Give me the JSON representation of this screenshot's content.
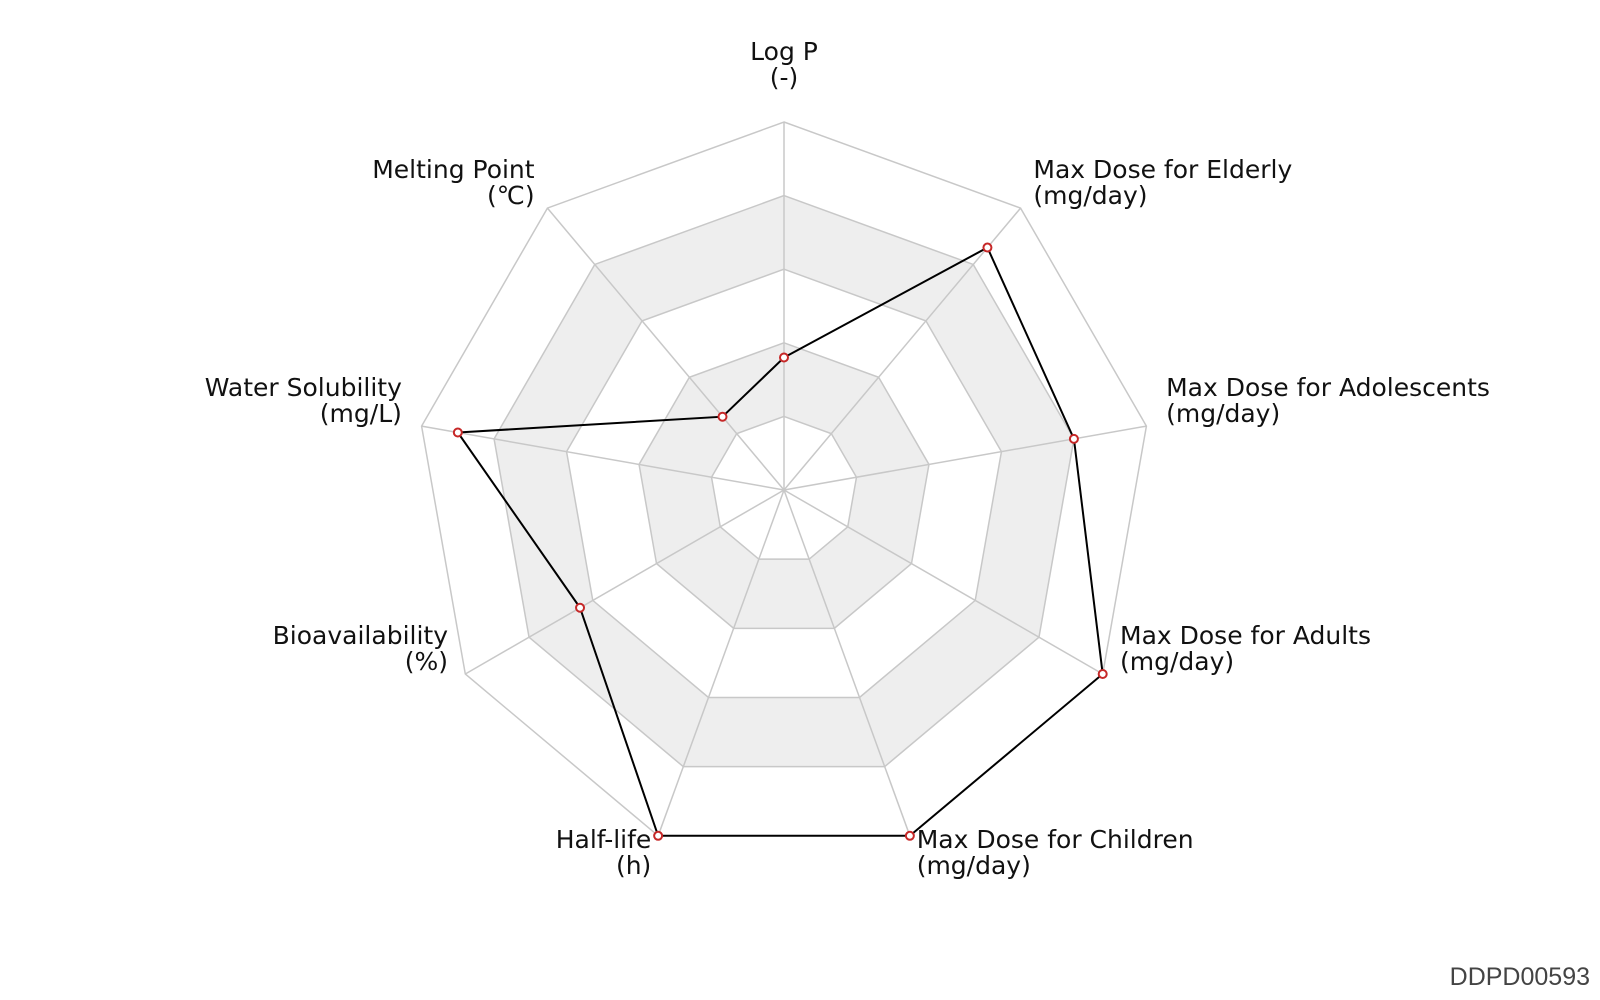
{
  "chart_data": {
    "type": "radar",
    "axes": [
      {
        "name": "Log P",
        "unit": "(-)"
      },
      {
        "name": "Max Dose for Elderly",
        "unit": "(mg/day)"
      },
      {
        "name": "Max Dose for Adolescents",
        "unit": "(mg/day)"
      },
      {
        "name": "Max Dose for Adults",
        "unit": "(mg/day)"
      },
      {
        "name": "Max Dose for Children",
        "unit": "(mg/day)"
      },
      {
        "name": "Half-life",
        "unit": "(h)"
      },
      {
        "name": "Bioavailability",
        "unit": "(%)"
      },
      {
        "name": "Water Solubility",
        "unit": "(mg/L)"
      },
      {
        "name": "Melting Point",
        "unit": "(℃)"
      }
    ],
    "range": [
      0,
      1
    ],
    "rings": 5,
    "alternating_bands": true,
    "values": [
      0.36,
      0.86,
      0.8,
      1.0,
      1.0,
      1.0,
      0.64,
      0.9,
      0.26
    ],
    "line_color": "#000000",
    "marker_color": "#c62828",
    "grid_color": "#c8c8c8",
    "band_color": "#eeeeee"
  },
  "footer": {
    "id_label": "DDPD00593"
  }
}
